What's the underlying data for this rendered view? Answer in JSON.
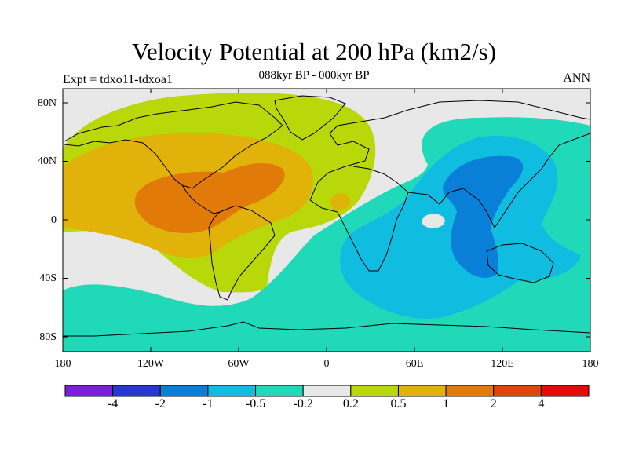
{
  "header": {
    "title": "Velocity Potential at 200 hPa (km2/s)",
    "subtitle": "088kyr BP - 000kyr BP",
    "left_string": "Expt = tdxo11-tdxoa1",
    "right_string": "ANN"
  },
  "axes": {
    "lat_labels": [
      "80N",
      "40N",
      "0",
      "40S",
      "80S"
    ],
    "lon_labels": [
      "180",
      "120W",
      "60W",
      "0",
      "60E",
      "120E",
      "180"
    ]
  },
  "legend": {
    "colors": [
      "#7b1fd8",
      "#2737d0",
      "#0a7fd8",
      "#10bde0",
      "#1fd9b8",
      "#e8e8e8",
      "#b8d80a",
      "#e0b20a",
      "#e27a0a",
      "#e0460c",
      "#e80a0a"
    ],
    "labels": [
      "-4",
      "-2",
      "-1",
      "-0.5",
      "-0.2",
      "0.2",
      "0.5",
      "1",
      "2",
      "4"
    ]
  },
  "map_colors": {
    "neutral": "#e8e8e8",
    "pos_02": "#b8d80a",
    "pos_05": "#e0b20a",
    "pos_1": "#e27a0a",
    "neg_02": "#1fd9b8",
    "neg_05": "#10bde0",
    "neg_1": "#0a7fd8"
  }
}
